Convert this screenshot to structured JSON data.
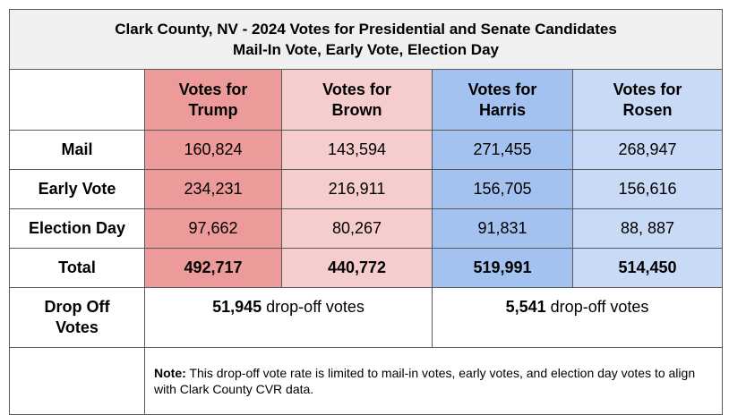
{
  "title": {
    "line1": "Clark County, NV - 2024 Votes for Presidential and Senate Candidates",
    "line2": "Mail-In Vote, Early Vote, Election Day"
  },
  "headers": {
    "trump": [
      "Votes for",
      "Trump"
    ],
    "brown": [
      "Votes for",
      "Brown"
    ],
    "harris": [
      "Votes for",
      "Harris"
    ],
    "rosen": [
      "Votes for",
      "Rosen"
    ]
  },
  "rows": {
    "mail": {
      "label": "Mail",
      "trump": "160,824",
      "brown": "143,594",
      "harris": "271,455",
      "rosen": "268,947"
    },
    "early": {
      "label": "Early Vote",
      "trump": "234,231",
      "brown": "216,911",
      "harris": "156,705",
      "rosen": "156,616"
    },
    "election_day": {
      "label": "Election Day",
      "trump": "97,662",
      "brown": "80,267",
      "harris": "91,831",
      "rosen": "88, 887"
    },
    "total": {
      "label": "Total",
      "trump": "492,717",
      "brown": "440,772",
      "harris": "519,991",
      "rosen": "514,450"
    }
  },
  "drop_off": {
    "label": [
      "Drop Off",
      "Votes"
    ],
    "republican": {
      "count": "51,945",
      "suffix": " drop-off votes"
    },
    "democrat": {
      "count": "5,541",
      "suffix": " drop-off votes"
    }
  },
  "note": {
    "label": "Note:",
    "text": " This drop-off vote rate is limited to mail-in votes, early votes, and election day votes to align with Clark County CVR data."
  },
  "colors": {
    "trump": "#ec9a9a",
    "brown": "#f5cdcd",
    "harris": "#a4c2f0",
    "rosen": "#c9daf6",
    "title_bg": "#f0f0f0"
  }
}
